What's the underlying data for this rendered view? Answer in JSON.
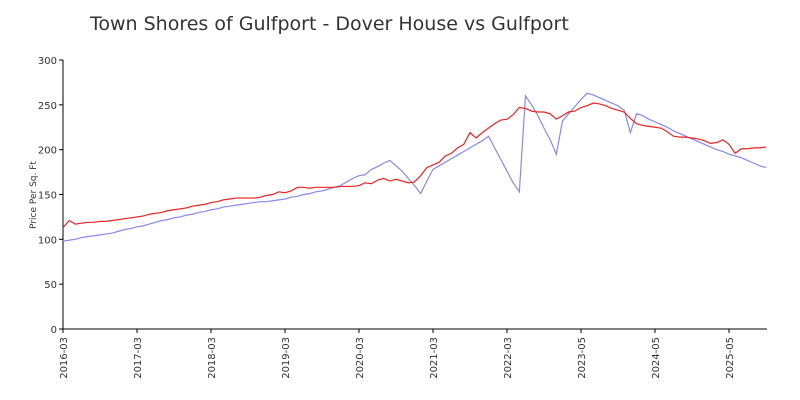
{
  "chart_data": {
    "type": "line",
    "title": "Town Shores of Gulfport - Dover House vs Gulfport",
    "ylabel": "Price Per Sq. Ft",
    "categories": [
      "2016-03",
      null,
      null,
      null,
      null,
      null,
      null,
      null,
      null,
      null,
      null,
      null,
      "2017-03",
      null,
      null,
      null,
      null,
      null,
      null,
      null,
      null,
      null,
      null,
      null,
      "2018-03",
      null,
      null,
      null,
      null,
      null,
      null,
      null,
      null,
      null,
      null,
      null,
      "2019-03",
      null,
      null,
      null,
      null,
      null,
      null,
      null,
      null,
      null,
      null,
      null,
      "2020-03",
      null,
      null,
      null,
      null,
      null,
      null,
      null,
      null,
      null,
      null,
      null,
      "2021-03",
      null,
      null,
      null,
      null,
      null,
      null,
      null,
      null,
      null,
      null,
      null,
      "2022-03",
      null,
      null,
      null,
      null,
      null,
      null,
      null,
      null,
      null,
      null,
      null,
      "2023-05",
      null,
      null,
      null,
      null,
      null,
      null,
      null,
      null,
      null,
      null,
      null,
      "2024-05",
      null,
      null,
      null,
      null,
      null,
      null,
      null,
      null,
      null,
      null,
      null,
      "2025-05",
      null,
      null,
      null,
      null,
      null,
      null
    ],
    "series": [
      {
        "color": "#8888ee",
        "values": [
          98,
          99,
          100,
          102,
          103,
          104,
          105,
          106,
          107,
          109,
          111,
          112,
          114,
          115,
          117,
          119,
          121,
          122,
          124,
          125,
          127,
          128,
          130,
          131,
          133,
          134,
          136,
          137,
          138,
          139,
          140,
          141,
          142,
          142,
          143,
          144,
          145,
          147,
          148,
          150,
          151,
          153,
          154,
          156,
          158,
          160,
          164,
          168,
          171,
          172,
          178,
          181,
          185,
          188,
          182,
          176,
          168,
          160,
          151,
          165,
          178,
          182,
          186,
          190,
          194,
          198,
          202,
          206,
          210,
          215,
          202,
          189,
          176,
          163,
          153,
          260,
          250,
          238,
          224,
          211,
          195,
          232,
          240,
          248,
          256,
          263,
          261,
          258,
          255,
          252,
          249,
          244,
          219,
          240,
          238,
          234,
          231,
          228,
          225,
          221,
          218,
          215,
          212,
          209,
          206,
          203,
          200,
          198,
          195,
          193,
          191,
          188,
          185,
          182,
          180
        ]
      },
      {
        "color": "#ee2222",
        "values": [
          113,
          121,
          117,
          118,
          119,
          119,
          120,
          120,
          121,
          122,
          123,
          124,
          125,
          126,
          128,
          129,
          130,
          132,
          133,
          134,
          135,
          137,
          138,
          139,
          141,
          142,
          144,
          145,
          146,
          146,
          146,
          146,
          147,
          149,
          150,
          153,
          152,
          154,
          158,
          158,
          157,
          158,
          158,
          158,
          158,
          159,
          159,
          159,
          160,
          163,
          162,
          166,
          168,
          165,
          167,
          165,
          163,
          164,
          171,
          180,
          183,
          186,
          193,
          196,
          202,
          206,
          219,
          213,
          219,
          224,
          229,
          233,
          234,
          239,
          247,
          246,
          243,
          242,
          242,
          240,
          234,
          238,
          242,
          243,
          247,
          249,
          252,
          251,
          249,
          246,
          244,
          242,
          235,
          229,
          227,
          226,
          225,
          224,
          220,
          215,
          214,
          214,
          213,
          212,
          210,
          207,
          208,
          211,
          206,
          196,
          201,
          201,
          202,
          202,
          203
        ]
      }
    ],
    "ylim": [
      0,
      300
    ],
    "yticks": [
      0,
      50,
      100,
      150,
      200,
      250,
      300
    ]
  }
}
